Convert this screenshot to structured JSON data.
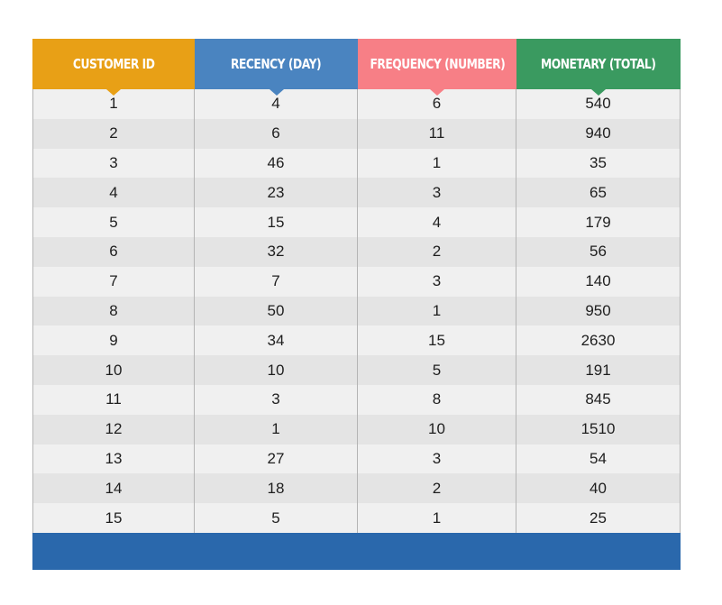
{
  "chart_data": {
    "type": "table",
    "columns": [
      {
        "label": "CUSTOMER ID",
        "color": "#e8a016"
      },
      {
        "label": "RECENCY (DAY)",
        "color": "#4a84c0"
      },
      {
        "label": "FREQUENCY (NUMBER)",
        "color": "#f77f86"
      },
      {
        "label": "MONETARY (TOTAL)",
        "color": "#3a9a60"
      }
    ],
    "rows": [
      [
        "1",
        "4",
        "6",
        "540"
      ],
      [
        "2",
        "6",
        "11",
        "940"
      ],
      [
        "3",
        "46",
        "1",
        "35"
      ],
      [
        "4",
        "23",
        "3",
        "65"
      ],
      [
        "5",
        "15",
        "4",
        "179"
      ],
      [
        "6",
        "32",
        "2",
        "56"
      ],
      [
        "7",
        "7",
        "3",
        "140"
      ],
      [
        "8",
        "50",
        "1",
        "950"
      ],
      [
        "9",
        "34",
        "15",
        "2630"
      ],
      [
        "10",
        "10",
        "5",
        "191"
      ],
      [
        "11",
        "3",
        "8",
        "845"
      ],
      [
        "12",
        "1",
        "10",
        "1510"
      ],
      [
        "13",
        "27",
        "3",
        "54"
      ],
      [
        "14",
        "18",
        "2",
        "40"
      ],
      [
        "15",
        "5",
        "1",
        "25"
      ]
    ],
    "footer_color": "#2a68ac"
  }
}
